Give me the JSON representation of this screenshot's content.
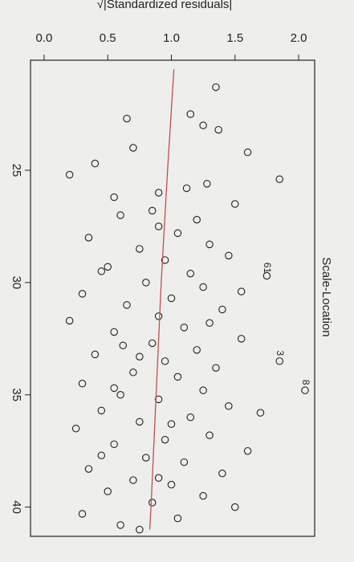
{
  "chart_data": {
    "type": "scatter",
    "title": "Scale-Location",
    "y_label": "√|Standardized residuals|",
    "x": [
      21.3,
      22.7,
      22.5,
      23.0,
      23.2,
      24.0,
      24.2,
      25.4,
      24.7,
      25.2,
      25.6,
      25.8,
      26.0,
      26.2,
      26.5,
      26.8,
      27.0,
      27.2,
      27.5,
      27.8,
      28.0,
      28.3,
      28.5,
      28.8,
      29.0,
      29.3,
      29.6,
      30.0,
      30.2,
      30.5,
      30.7,
      31.0,
      31.2,
      31.5,
      31.7,
      32.0,
      32.2,
      32.5,
      32.7,
      33.0,
      33.2,
      33.5,
      33.8,
      34.0,
      34.2,
      34.5,
      34.8,
      35.0,
      35.2,
      35.5,
      35.7,
      36.0,
      36.2,
      36.5,
      36.8,
      37.0,
      37.2,
      37.5,
      37.8,
      38.0,
      38.3,
      38.5,
      38.8,
      39.0,
      39.3,
      39.5,
      39.8,
      40.0,
      40.3,
      40.5,
      40.8,
      41.0,
      29.5,
      31.8,
      33.3,
      34.7,
      36.3,
      37.7,
      38.7,
      32.8,
      35.8,
      30.4,
      29.7,
      33.5,
      34.8
    ],
    "values": [
      1.35,
      0.65,
      1.15,
      1.25,
      1.37,
      0.7,
      1.6,
      1.85,
      0.4,
      0.2,
      1.28,
      1.12,
      0.9,
      0.55,
      1.5,
      0.85,
      0.6,
      1.2,
      0.9,
      1.05,
      0.35,
      1.3,
      0.75,
      1.45,
      0.95,
      0.5,
      1.15,
      0.8,
      1.25,
      0.3,
      1.0,
      0.65,
      1.4,
      0.9,
      0.2,
      1.1,
      0.55,
      1.55,
      0.85,
      1.2,
      0.4,
      0.95,
      1.35,
      0.7,
      1.05,
      0.3,
      1.25,
      0.6,
      0.9,
      1.45,
      0.45,
      1.15,
      0.75,
      0.25,
      1.3,
      0.95,
      0.55,
      1.6,
      0.8,
      1.1,
      0.35,
      1.4,
      0.7,
      1.0,
      0.5,
      1.25,
      0.85,
      1.5,
      0.3,
      1.05,
      0.6,
      0.75,
      0.45,
      1.3,
      0.75,
      0.55,
      1.0,
      0.45,
      0.9,
      0.62,
      1.7,
      1.55,
      1.75,
      1.85,
      2.05
    ],
    "color": "#222222",
    "smooth": {
      "x": [
        20.5,
        25,
        30,
        35,
        40,
        41.0
      ],
      "values": [
        1.02,
        0.97,
        0.92,
        0.88,
        0.84,
        0.83
      ],
      "color": "#c0504d"
    },
    "annotations": [
      {
        "label": "61",
        "x": 29.7,
        "y": 1.75
      },
      {
        "label": "3",
        "x": 33.5,
        "y": 1.85
      },
      {
        "label": "8",
        "x": 34.8,
        "y": 2.05
      }
    ],
    "xlim": [
      20.1,
      41.3
    ],
    "xticks": [
      25,
      30,
      35,
      40
    ],
    "ylim": [
      -0.107,
      2.126
    ],
    "yticks": [
      {
        "value": 0,
        "label": "0.0"
      },
      0.5,
      {
        "value": 1,
        "label": "1.0"
      },
      1.5,
      {
        "value": 2,
        "label": "2.0"
      }
    ]
  }
}
